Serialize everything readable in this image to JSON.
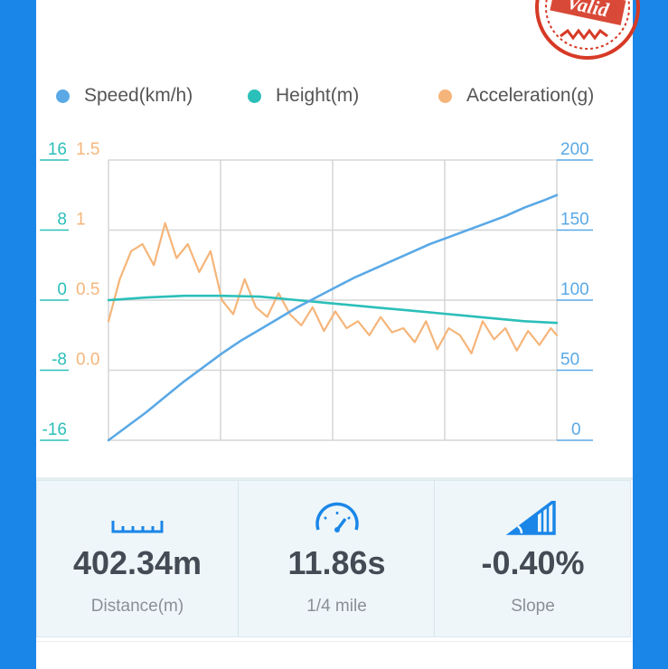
{
  "stamp": {
    "text": "Valid",
    "color": "#d63a26"
  },
  "legend": [
    {
      "label": "Speed(km/h)",
      "color": "#5aa9e6"
    },
    {
      "label": "Height(m)",
      "color": "#2bbfb9"
    },
    {
      "label": "Acceleration(g)",
      "color": "#f5b57a"
    }
  ],
  "chart_data": {
    "type": "line",
    "xlabel": "",
    "ylabel": "",
    "grid": true,
    "axes": {
      "height_left": {
        "ticks": [
          "16",
          "8",
          "0",
          "-8",
          "-16"
        ],
        "ylim": [
          -16,
          16
        ],
        "color": "#2bbfb9"
      },
      "accel_left": {
        "ticks": [
          "1.5",
          "1",
          "0.5",
          "0.0"
        ],
        "ylim": [
          -0.5,
          1.5
        ],
        "color": "#f5b57a"
      },
      "speed_right": {
        "ticks": [
          "200",
          "150",
          "100",
          "50",
          "0"
        ],
        "ylim": [
          0,
          200
        ],
        "color": "#5aa9e6"
      }
    },
    "x_range": [
      0,
      11.86
    ],
    "series": [
      {
        "name": "Speed(km/h)",
        "axis": "speed_right",
        "x": [
          0,
          0.5,
          1,
          1.5,
          2,
          2.5,
          3,
          3.5,
          4,
          4.5,
          5,
          5.5,
          6,
          6.5,
          7,
          7.5,
          8,
          8.5,
          9,
          9.5,
          10,
          10.5,
          11,
          11.5,
          11.86
        ],
        "values": [
          0,
          10,
          20,
          31,
          42,
          52,
          62,
          71,
          79,
          87,
          95,
          102,
          109,
          116,
          122,
          128,
          134,
          140,
          145,
          150,
          155,
          160,
          166,
          171,
          175
        ]
      },
      {
        "name": "Height(m)",
        "axis": "height_left",
        "x": [
          0,
          1,
          2,
          3,
          4,
          5,
          6,
          7,
          8,
          9,
          10,
          11,
          11.86
        ],
        "values": [
          0,
          0.3,
          0.5,
          0.5,
          0.4,
          0,
          -0.4,
          -0.8,
          -1.2,
          -1.6,
          -2.0,
          -2.4,
          -2.6
        ]
      },
      {
        "name": "Acceleration(g)",
        "axis": "accel_left",
        "x": [
          0,
          0.3,
          0.6,
          0.9,
          1.2,
          1.5,
          1.8,
          2.1,
          2.4,
          2.7,
          3.0,
          3.3,
          3.6,
          3.9,
          4.2,
          4.5,
          4.8,
          5.1,
          5.4,
          5.7,
          6.0,
          6.3,
          6.6,
          6.9,
          7.2,
          7.5,
          7.8,
          8.1,
          8.4,
          8.7,
          9.0,
          9.3,
          9.6,
          9.9,
          10.2,
          10.5,
          10.8,
          11.1,
          11.4,
          11.7,
          11.86
        ],
        "values": [
          0.35,
          0.65,
          0.85,
          0.9,
          0.75,
          1.05,
          0.8,
          0.9,
          0.7,
          0.85,
          0.5,
          0.4,
          0.65,
          0.45,
          0.38,
          0.55,
          0.4,
          0.32,
          0.45,
          0.28,
          0.42,
          0.3,
          0.35,
          0.25,
          0.38,
          0.27,
          0.3,
          0.2,
          0.35,
          0.15,
          0.3,
          0.25,
          0.12,
          0.35,
          0.22,
          0.3,
          0.14,
          0.28,
          0.18,
          0.3,
          0.25
        ]
      }
    ]
  },
  "stats": [
    {
      "icon": "ruler-icon",
      "value": "402.34m",
      "label": "Distance(m)"
    },
    {
      "icon": "speedometer-icon",
      "value": "11.86s",
      "label": "1/4 mile"
    },
    {
      "icon": "slope-icon",
      "value": "-0.40%",
      "label": "Slope"
    }
  ],
  "colors": {
    "accent": "#1a86e8",
    "icon": "#1a86e8",
    "value": "#444b54",
    "grid": "#d6d6d6"
  }
}
